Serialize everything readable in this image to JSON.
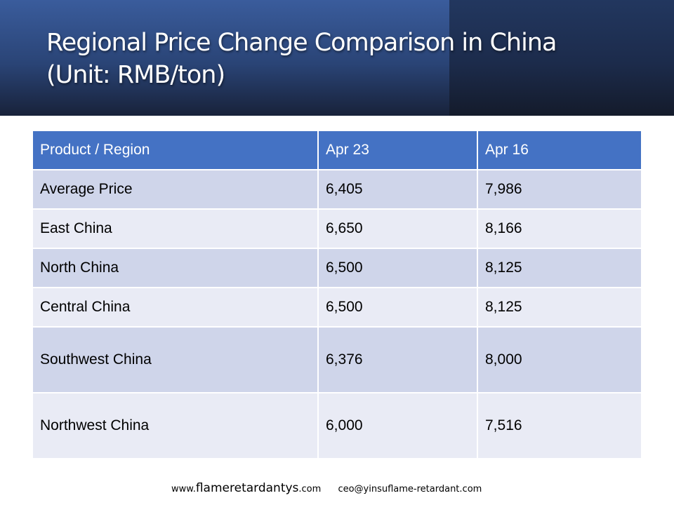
{
  "title": {
    "line1": "Regional Price Change Comparison in China",
    "line2": "(Unit: RMB/ton)"
  },
  "table": {
    "headers": [
      "Product / Region",
      "Apr 23",
      "Apr 16"
    ],
    "rows": [
      [
        "Average Price",
        "6,405",
        "7,986"
      ],
      [
        "East China",
        "6,650",
        "8,166"
      ],
      [
        "North China",
        "6,500",
        "8,125"
      ],
      [
        "Central China",
        "6,500",
        "8,125"
      ],
      [
        "Southwest China",
        "6,376",
        "8,000"
      ],
      [
        "Northwest China",
        "6,000",
        "7,516"
      ]
    ]
  },
  "footer": {
    "www": "www.",
    "site": "flameretardantys",
    "com": ".com",
    "email": "ceo@yinsuflame-retardant.com"
  },
  "colors": {
    "header_fill": "#4472c4",
    "row_odd": "#cfd5ea",
    "row_even": "#e9ebf5",
    "banner": "#1c2b4b"
  }
}
